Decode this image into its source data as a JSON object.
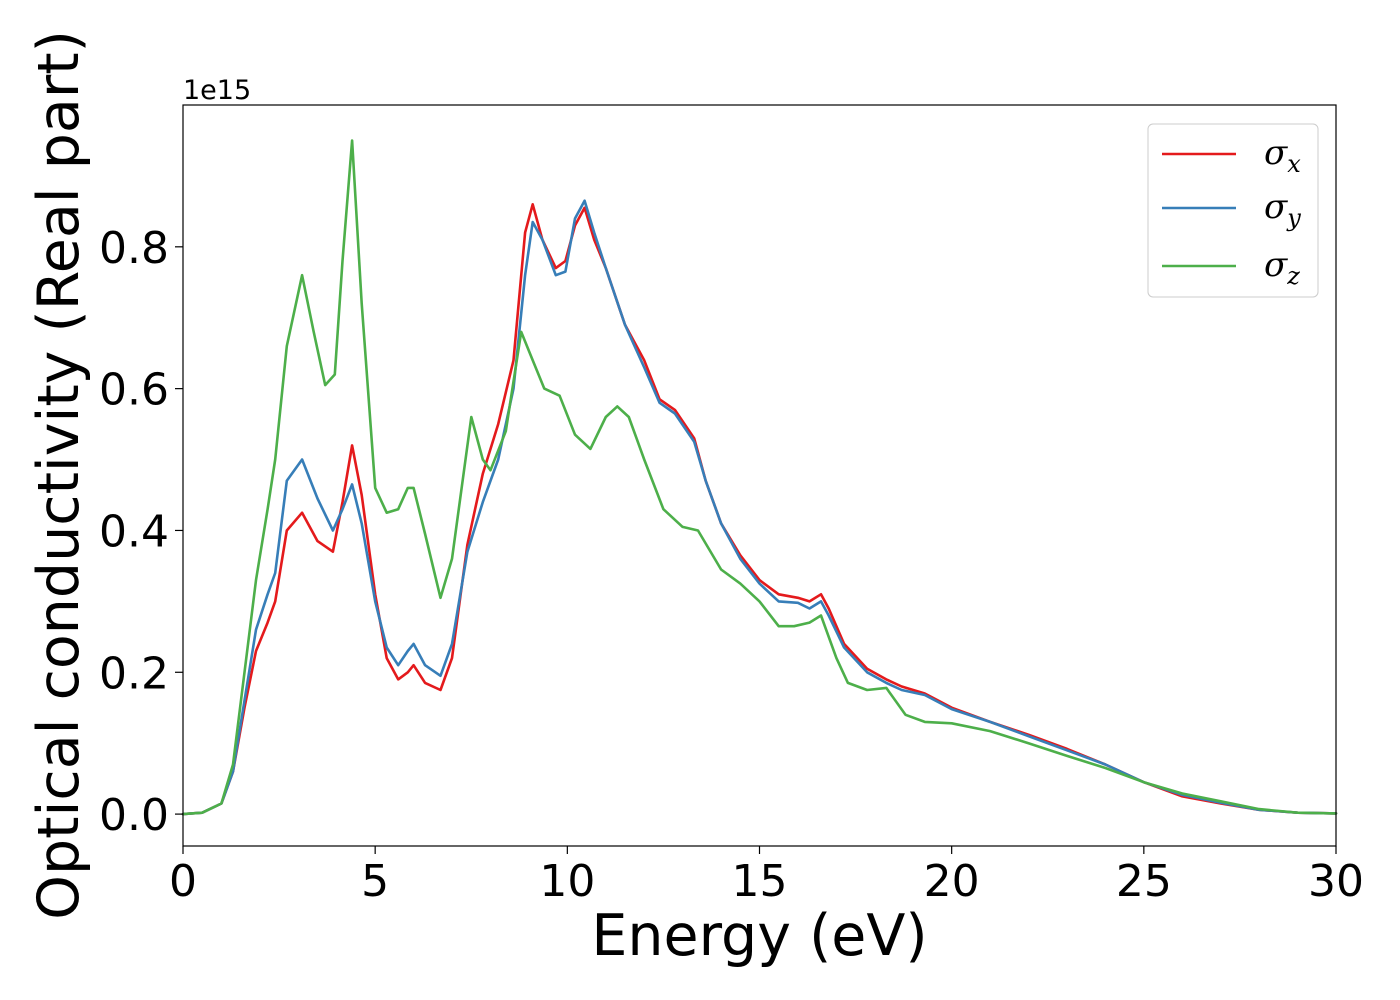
{
  "chart_data": {
    "type": "line",
    "xlabel": "Energy (eV)",
    "ylabel": "Optical conductivity (Real part)",
    "y_offset_label": "1e15",
    "xlim": [
      0,
      30
    ],
    "ylim": [
      -0.045,
      1.0
    ],
    "x_ticks": [
      0,
      5,
      10,
      15,
      20,
      25,
      30
    ],
    "x_tick_labels": [
      "0",
      "5",
      "10",
      "15",
      "20",
      "25",
      "30"
    ],
    "y_ticks": [
      0.0,
      0.2,
      0.4,
      0.6,
      0.8
    ],
    "y_tick_labels": [
      "0.0",
      "0.2",
      "0.4",
      "0.6",
      "0.8"
    ],
    "grid": false,
    "legend_position": "top-right",
    "series": [
      {
        "name": "σx",
        "symbol": "σ",
        "subscript": "x",
        "color": "#e41a1c",
        "points": [
          [
            0,
            0
          ],
          [
            0.5,
            0.002
          ],
          [
            1.0,
            0.015
          ],
          [
            1.3,
            0.06
          ],
          [
            1.6,
            0.15
          ],
          [
            1.9,
            0.23
          ],
          [
            2.2,
            0.27
          ],
          [
            2.4,
            0.3
          ],
          [
            2.7,
            0.4
          ],
          [
            3.1,
            0.425
          ],
          [
            3.5,
            0.385
          ],
          [
            3.9,
            0.37
          ],
          [
            4.15,
            0.44
          ],
          [
            4.4,
            0.52
          ],
          [
            4.65,
            0.45
          ],
          [
            5.0,
            0.31
          ],
          [
            5.3,
            0.22
          ],
          [
            5.6,
            0.19
          ],
          [
            5.85,
            0.2
          ],
          [
            6.0,
            0.21
          ],
          [
            6.3,
            0.185
          ],
          [
            6.7,
            0.175
          ],
          [
            7.0,
            0.22
          ],
          [
            7.4,
            0.38
          ],
          [
            7.8,
            0.48
          ],
          [
            8.2,
            0.55
          ],
          [
            8.6,
            0.64
          ],
          [
            8.9,
            0.82
          ],
          [
            9.1,
            0.86
          ],
          [
            9.35,
            0.81
          ],
          [
            9.7,
            0.77
          ],
          [
            9.95,
            0.78
          ],
          [
            10.2,
            0.83
          ],
          [
            10.45,
            0.855
          ],
          [
            10.7,
            0.81
          ],
          [
            11.0,
            0.77
          ],
          [
            11.5,
            0.69
          ],
          [
            12.0,
            0.64
          ],
          [
            12.4,
            0.585
          ],
          [
            12.8,
            0.57
          ],
          [
            13.3,
            0.53
          ],
          [
            13.6,
            0.47
          ],
          [
            14.0,
            0.41
          ],
          [
            14.5,
            0.365
          ],
          [
            15.0,
            0.33
          ],
          [
            15.5,
            0.31
          ],
          [
            16.0,
            0.305
          ],
          [
            16.3,
            0.3
          ],
          [
            16.6,
            0.31
          ],
          [
            16.8,
            0.29
          ],
          [
            17.2,
            0.24
          ],
          [
            17.8,
            0.205
          ],
          [
            18.3,
            0.19
          ],
          [
            18.7,
            0.18
          ],
          [
            19.3,
            0.17
          ],
          [
            20.0,
            0.15
          ],
          [
            21.0,
            0.13
          ],
          [
            22.0,
            0.112
          ],
          [
            23.0,
            0.092
          ],
          [
            24.0,
            0.07
          ],
          [
            25.0,
            0.045
          ],
          [
            26.0,
            0.025
          ],
          [
            27.0,
            0.015
          ],
          [
            28.0,
            0.006
          ],
          [
            29.0,
            0.002
          ],
          [
            30.0,
            0.001
          ]
        ]
      },
      {
        "name": "σy",
        "symbol": "σ",
        "subscript": "y",
        "color": "#377eb8",
        "points": [
          [
            0,
            0
          ],
          [
            0.5,
            0.002
          ],
          [
            1.0,
            0.015
          ],
          [
            1.3,
            0.06
          ],
          [
            1.6,
            0.16
          ],
          [
            1.9,
            0.26
          ],
          [
            2.2,
            0.31
          ],
          [
            2.4,
            0.34
          ],
          [
            2.7,
            0.47
          ],
          [
            3.1,
            0.5
          ],
          [
            3.5,
            0.445
          ],
          [
            3.9,
            0.4
          ],
          [
            4.15,
            0.43
          ],
          [
            4.4,
            0.465
          ],
          [
            4.65,
            0.41
          ],
          [
            5.0,
            0.3
          ],
          [
            5.3,
            0.235
          ],
          [
            5.6,
            0.21
          ],
          [
            5.85,
            0.23
          ],
          [
            6.0,
            0.24
          ],
          [
            6.3,
            0.21
          ],
          [
            6.7,
            0.195
          ],
          [
            7.0,
            0.24
          ],
          [
            7.4,
            0.37
          ],
          [
            7.8,
            0.44
          ],
          [
            8.2,
            0.5
          ],
          [
            8.6,
            0.6
          ],
          [
            8.9,
            0.76
          ],
          [
            9.1,
            0.835
          ],
          [
            9.35,
            0.81
          ],
          [
            9.7,
            0.76
          ],
          [
            9.95,
            0.765
          ],
          [
            10.2,
            0.84
          ],
          [
            10.45,
            0.865
          ],
          [
            10.7,
            0.82
          ],
          [
            11.0,
            0.77
          ],
          [
            11.5,
            0.69
          ],
          [
            12.0,
            0.63
          ],
          [
            12.4,
            0.58
          ],
          [
            12.8,
            0.565
          ],
          [
            13.3,
            0.525
          ],
          [
            13.6,
            0.47
          ],
          [
            14.0,
            0.41
          ],
          [
            14.5,
            0.36
          ],
          [
            15.0,
            0.325
          ],
          [
            15.5,
            0.3
          ],
          [
            16.0,
            0.298
          ],
          [
            16.3,
            0.29
          ],
          [
            16.6,
            0.3
          ],
          [
            16.8,
            0.28
          ],
          [
            17.2,
            0.235
          ],
          [
            17.8,
            0.2
          ],
          [
            18.3,
            0.185
          ],
          [
            18.7,
            0.175
          ],
          [
            19.3,
            0.168
          ],
          [
            20.0,
            0.148
          ],
          [
            21.0,
            0.13
          ],
          [
            22.0,
            0.11
          ],
          [
            23.0,
            0.09
          ],
          [
            24.0,
            0.07
          ],
          [
            25.0,
            0.045
          ],
          [
            26.0,
            0.027
          ],
          [
            27.0,
            0.016
          ],
          [
            28.0,
            0.006
          ],
          [
            29.0,
            0.002
          ],
          [
            30.0,
            0.001
          ]
        ]
      },
      {
        "name": "σz",
        "symbol": "σ",
        "subscript": "z",
        "color": "#4daf4a",
        "points": [
          [
            0,
            0
          ],
          [
            0.5,
            0.002
          ],
          [
            1.0,
            0.015
          ],
          [
            1.3,
            0.07
          ],
          [
            1.6,
            0.2
          ],
          [
            1.9,
            0.33
          ],
          [
            2.2,
            0.43
          ],
          [
            2.4,
            0.5
          ],
          [
            2.7,
            0.66
          ],
          [
            3.1,
            0.76
          ],
          [
            3.4,
            0.68
          ],
          [
            3.7,
            0.605
          ],
          [
            3.95,
            0.62
          ],
          [
            4.15,
            0.78
          ],
          [
            4.4,
            0.95
          ],
          [
            4.65,
            0.72
          ],
          [
            5.0,
            0.46
          ],
          [
            5.3,
            0.425
          ],
          [
            5.6,
            0.43
          ],
          [
            5.85,
            0.46
          ],
          [
            6.0,
            0.46
          ],
          [
            6.3,
            0.395
          ],
          [
            6.7,
            0.305
          ],
          [
            7.0,
            0.36
          ],
          [
            7.5,
            0.56
          ],
          [
            7.8,
            0.5
          ],
          [
            8.0,
            0.485
          ],
          [
            8.4,
            0.54
          ],
          [
            8.8,
            0.68
          ],
          [
            9.1,
            0.64
          ],
          [
            9.4,
            0.6
          ],
          [
            9.8,
            0.59
          ],
          [
            10.2,
            0.535
          ],
          [
            10.6,
            0.515
          ],
          [
            11.0,
            0.56
          ],
          [
            11.3,
            0.575
          ],
          [
            11.6,
            0.56
          ],
          [
            12.0,
            0.5
          ],
          [
            12.5,
            0.43
          ],
          [
            13.0,
            0.405
          ],
          [
            13.4,
            0.4
          ],
          [
            14.0,
            0.345
          ],
          [
            14.5,
            0.325
          ],
          [
            15.0,
            0.3
          ],
          [
            15.5,
            0.265
          ],
          [
            15.9,
            0.265
          ],
          [
            16.3,
            0.27
          ],
          [
            16.6,
            0.28
          ],
          [
            17.0,
            0.22
          ],
          [
            17.3,
            0.185
          ],
          [
            17.8,
            0.175
          ],
          [
            18.3,
            0.178
          ],
          [
            18.8,
            0.14
          ],
          [
            19.3,
            0.13
          ],
          [
            20.0,
            0.128
          ],
          [
            21.0,
            0.117
          ],
          [
            22.0,
            0.1
          ],
          [
            23.0,
            0.082
          ],
          [
            24.0,
            0.065
          ],
          [
            25.0,
            0.045
          ],
          [
            26.0,
            0.029
          ],
          [
            27.0,
            0.018
          ],
          [
            28.0,
            0.007
          ],
          [
            29.0,
            0.002
          ],
          [
            30.0,
            0.001
          ]
        ]
      }
    ]
  }
}
